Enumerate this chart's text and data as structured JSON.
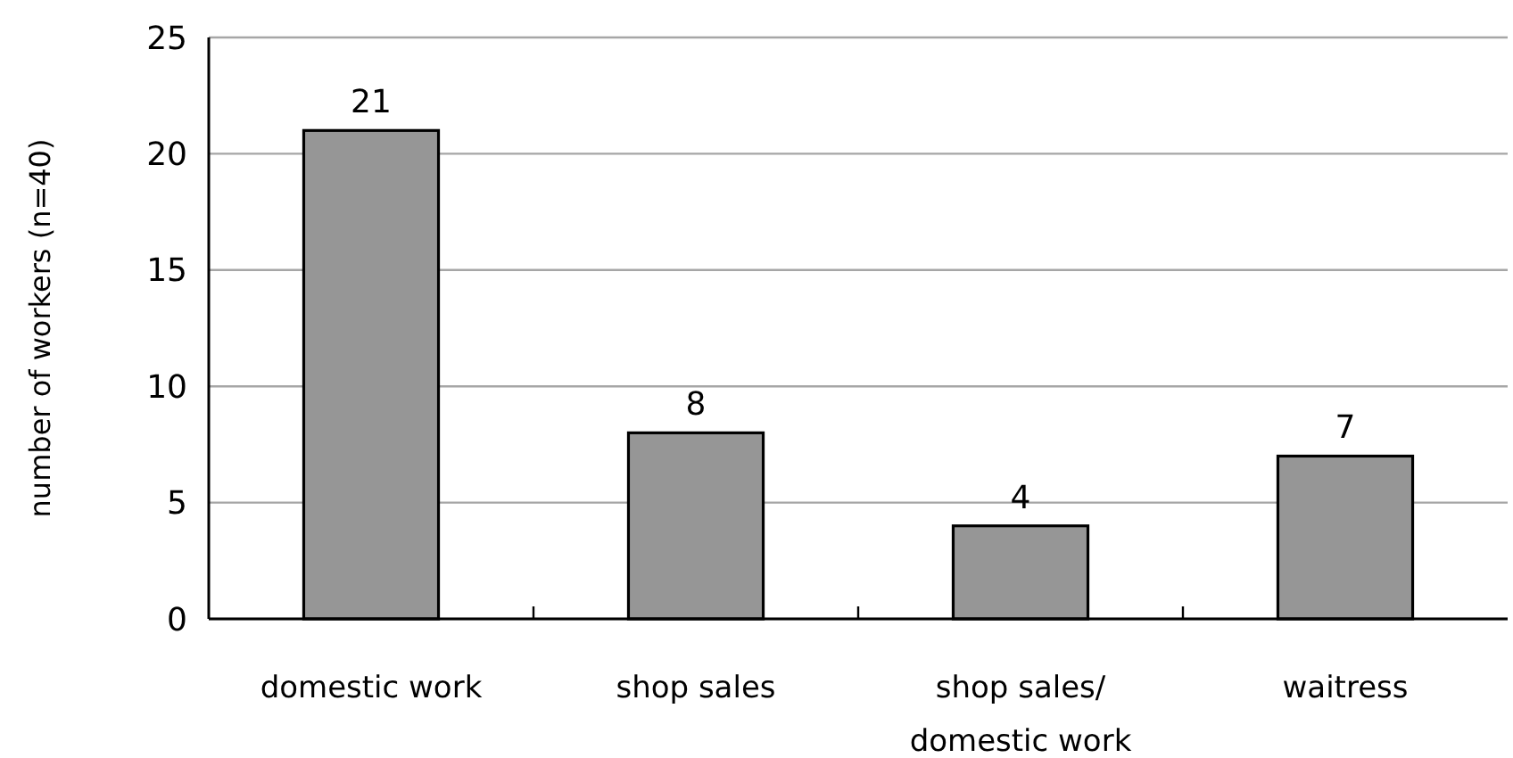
{
  "chart_data": {
    "type": "bar",
    "ylabel": "number of workers (n=40)",
    "categories": [
      "domestic work",
      "shop sales",
      "shop sales/ domestic work",
      "waitress"
    ],
    "values": [
      21,
      8,
      4,
      7
    ],
    "color": "#969696",
    "ylim": [
      0,
      25
    ],
    "yticks": [
      0,
      5,
      10,
      15,
      20,
      25
    ],
    "grid": "y",
    "data_labels": true
  }
}
